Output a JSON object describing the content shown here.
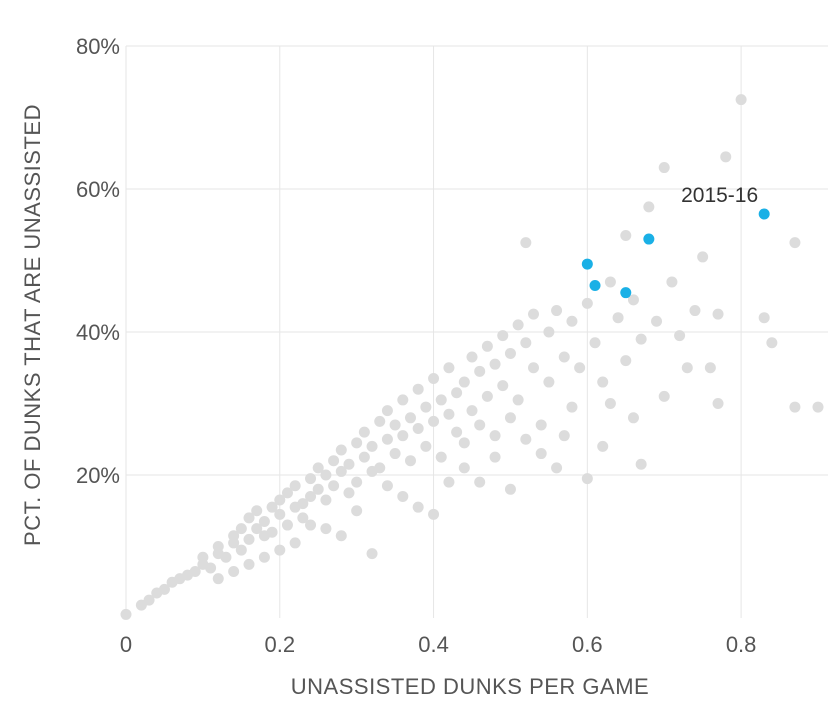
{
  "chart_data": {
    "type": "scatter",
    "title": "",
    "xlabel": "UNASSISTED DUNKS PER GAME",
    "ylabel": "PCT. OF DUNKS THAT ARE UNASSISTED",
    "xlim": [
      0,
      0.9
    ],
    "ylim": [
      0,
      80
    ],
    "x_ticks": [
      0,
      0.2,
      0.4,
      0.6,
      0.8
    ],
    "x_tick_labels": [
      "0",
      "0.2",
      "0.4",
      "0.6",
      "0.8"
    ],
    "y_ticks": [
      20,
      40,
      60,
      80
    ],
    "y_tick_labels": [
      "20%",
      "40%",
      "60%",
      "80%"
    ],
    "grid": true,
    "colors": {
      "league": "#dcdcdc",
      "highlight": "#1ab0e6"
    },
    "series": [
      {
        "points": [
          [
            0.0,
            0.5
          ],
          [
            0.02,
            1.8
          ],
          [
            0.03,
            2.5
          ],
          [
            0.04,
            3.5
          ],
          [
            0.05,
            4.0
          ],
          [
            0.06,
            5.0
          ],
          [
            0.07,
            5.5
          ],
          [
            0.08,
            6.0
          ],
          [
            0.09,
            6.5
          ],
          [
            0.1,
            7.5
          ],
          [
            0.1,
            8.5
          ],
          [
            0.11,
            7.0
          ],
          [
            0.12,
            9.0
          ],
          [
            0.12,
            10.0
          ],
          [
            0.13,
            8.5
          ],
          [
            0.14,
            10.5
          ],
          [
            0.14,
            11.5
          ],
          [
            0.15,
            9.5
          ],
          [
            0.15,
            12.5
          ],
          [
            0.16,
            11.0
          ],
          [
            0.16,
            14.0
          ],
          [
            0.17,
            12.5
          ],
          [
            0.17,
            15.0
          ],
          [
            0.18,
            13.5
          ],
          [
            0.18,
            11.5
          ],
          [
            0.19,
            15.5
          ],
          [
            0.19,
            12.0
          ],
          [
            0.2,
            14.5
          ],
          [
            0.2,
            16.5
          ],
          [
            0.21,
            13.0
          ],
          [
            0.21,
            17.5
          ],
          [
            0.22,
            15.5
          ],
          [
            0.22,
            18.5
          ],
          [
            0.23,
            16.0
          ],
          [
            0.23,
            14.0
          ],
          [
            0.24,
            19.5
          ],
          [
            0.24,
            17.0
          ],
          [
            0.25,
            18.0
          ],
          [
            0.25,
            21.0
          ],
          [
            0.26,
            16.5
          ],
          [
            0.26,
            20.0
          ],
          [
            0.27,
            22.0
          ],
          [
            0.27,
            18.5
          ],
          [
            0.28,
            20.5
          ],
          [
            0.28,
            23.5
          ],
          [
            0.29,
            17.5
          ],
          [
            0.29,
            21.5
          ],
          [
            0.3,
            24.5
          ],
          [
            0.3,
            19.0
          ],
          [
            0.31,
            22.5
          ],
          [
            0.31,
            26.0
          ],
          [
            0.32,
            20.5
          ],
          [
            0.32,
            24.0
          ],
          [
            0.33,
            27.5
          ],
          [
            0.33,
            21.0
          ],
          [
            0.34,
            25.0
          ],
          [
            0.34,
            29.0
          ],
          [
            0.35,
            23.0
          ],
          [
            0.35,
            27.0
          ],
          [
            0.36,
            25.5
          ],
          [
            0.36,
            30.5
          ],
          [
            0.37,
            22.0
          ],
          [
            0.37,
            28.0
          ],
          [
            0.38,
            26.5
          ],
          [
            0.38,
            32.0
          ],
          [
            0.39,
            24.0
          ],
          [
            0.39,
            29.5
          ],
          [
            0.4,
            27.5
          ],
          [
            0.4,
            33.5
          ],
          [
            0.41,
            22.5
          ],
          [
            0.41,
            30.5
          ],
          [
            0.42,
            28.5
          ],
          [
            0.42,
            35.0
          ],
          [
            0.43,
            26.0
          ],
          [
            0.43,
            31.5
          ],
          [
            0.44,
            33.0
          ],
          [
            0.44,
            24.5
          ],
          [
            0.45,
            36.5
          ],
          [
            0.45,
            29.0
          ],
          [
            0.46,
            34.5
          ],
          [
            0.46,
            27.0
          ],
          [
            0.47,
            38.0
          ],
          [
            0.47,
            31.0
          ],
          [
            0.48,
            35.5
          ],
          [
            0.48,
            25.5
          ],
          [
            0.49,
            39.5
          ],
          [
            0.49,
            32.5
          ],
          [
            0.5,
            37.0
          ],
          [
            0.5,
            28.0
          ],
          [
            0.51,
            41.0
          ],
          [
            0.51,
            30.5
          ],
          [
            0.52,
            38.5
          ],
          [
            0.52,
            52.5
          ],
          [
            0.53,
            35.0
          ],
          [
            0.53,
            42.5
          ],
          [
            0.54,
            27.0
          ],
          [
            0.55,
            40.0
          ],
          [
            0.55,
            33.0
          ],
          [
            0.56,
            43.0
          ],
          [
            0.57,
            36.5
          ],
          [
            0.57,
            25.5
          ],
          [
            0.58,
            41.5
          ],
          [
            0.59,
            35.0
          ],
          [
            0.6,
            44.0
          ],
          [
            0.6,
            19.5
          ],
          [
            0.61,
            38.5
          ],
          [
            0.62,
            33.0
          ],
          [
            0.62,
            24.0
          ],
          [
            0.63,
            47.0
          ],
          [
            0.63,
            30.0
          ],
          [
            0.64,
            42.0
          ],
          [
            0.65,
            36.0
          ],
          [
            0.65,
            53.5
          ],
          [
            0.66,
            28.0
          ],
          [
            0.66,
            44.5
          ],
          [
            0.67,
            39.0
          ],
          [
            0.67,
            21.5
          ],
          [
            0.68,
            57.5
          ],
          [
            0.69,
            41.5
          ],
          [
            0.7,
            63.0
          ],
          [
            0.7,
            31.0
          ],
          [
            0.71,
            47.0
          ],
          [
            0.72,
            39.5
          ],
          [
            0.73,
            35.0
          ],
          [
            0.74,
            43.0
          ],
          [
            0.75,
            50.5
          ],
          [
            0.76,
            35.0
          ],
          [
            0.77,
            42.5
          ],
          [
            0.77,
            30.0
          ],
          [
            0.78,
            64.5
          ],
          [
            0.8,
            72.5
          ],
          [
            0.83,
            42.0
          ],
          [
            0.84,
            38.5
          ],
          [
            0.87,
            52.5
          ],
          [
            0.87,
            29.5
          ],
          [
            0.9,
            29.5
          ],
          [
            0.44,
            21.0
          ],
          [
            0.46,
            19.0
          ],
          [
            0.48,
            22.5
          ],
          [
            0.5,
            18.0
          ],
          [
            0.52,
            25.0
          ],
          [
            0.54,
            23.0
          ],
          [
            0.56,
            21.0
          ],
          [
            0.58,
            29.5
          ],
          [
            0.36,
            17.0
          ],
          [
            0.38,
            15.5
          ],
          [
            0.34,
            18.5
          ],
          [
            0.3,
            15.0
          ],
          [
            0.26,
            12.5
          ],
          [
            0.24,
            13.0
          ],
          [
            0.28,
            11.5
          ],
          [
            0.22,
            10.5
          ],
          [
            0.2,
            9.5
          ],
          [
            0.18,
            8.5
          ],
          [
            0.16,
            7.5
          ],
          [
            0.14,
            6.5
          ],
          [
            0.12,
            5.5
          ],
          [
            0.32,
            9.0
          ],
          [
            0.4,
            14.5
          ],
          [
            0.42,
            19.0
          ]
        ]
      },
      {
        "points": [
          [
            0.6,
            49.5
          ],
          [
            0.61,
            46.5
          ],
          [
            0.65,
            45.5
          ],
          [
            0.68,
            53.0
          ],
          [
            0.83,
            56.5
          ]
        ]
      }
    ],
    "annotations": [
      {
        "text": "2015-16",
        "x": 0.83,
        "y": 56.5
      }
    ]
  }
}
